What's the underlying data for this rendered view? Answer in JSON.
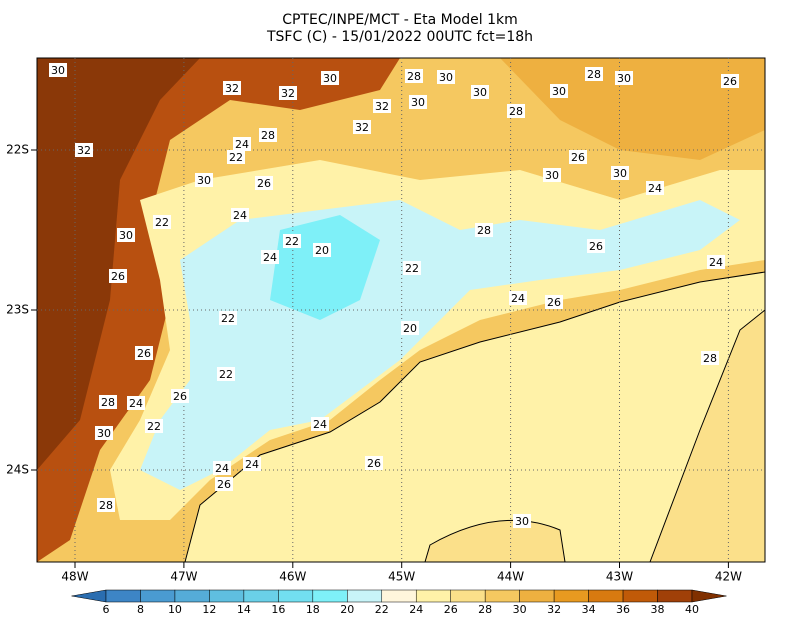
{
  "header": {
    "title": "CPTEC/INPE/MCT -  Eta Model 1km",
    "subtitle": "TSFC (C) - 15/01/2022 00UTC fct=18h"
  },
  "map": {
    "lon_labels": [
      "48W",
      "47W",
      "46W",
      "45W",
      "44W",
      "43W",
      "42W"
    ],
    "lat_labels": [
      "22S",
      "23S",
      "24S"
    ],
    "contour_labels": [
      30,
      32,
      32,
      30,
      28,
      30,
      28,
      30,
      26,
      32,
      30,
      32,
      30,
      28,
      30,
      24,
      22,
      28,
      30,
      26,
      24,
      22,
      30,
      26,
      24,
      22,
      20,
      22,
      26,
      30,
      24,
      24,
      20,
      22,
      22,
      26,
      28,
      26,
      24,
      30,
      28,
      22,
      24,
      24,
      26,
      28,
      30,
      26,
      24,
      26,
      26,
      28,
      30,
      32,
      24
    ]
  },
  "colorbar": {
    "labels": [
      6,
      8,
      10,
      12,
      14,
      16,
      18,
      20,
      22,
      24,
      26,
      28,
      30,
      32,
      34,
      36,
      38,
      40
    ],
    "colors": [
      "#2a6db0",
      "#3d85c6",
      "#4a9bd1",
      "#55acd8",
      "#5fbfe0",
      "#6ad0e8",
      "#72dff0",
      "#7ef0f8",
      "#c8f4f8",
      "#fff6dc",
      "#fff2a8",
      "#fbe08a",
      "#f5c860",
      "#eeb040",
      "#e89a20",
      "#d87a10",
      "#c05a08",
      "#a04008",
      "#803000"
    ]
  }
}
